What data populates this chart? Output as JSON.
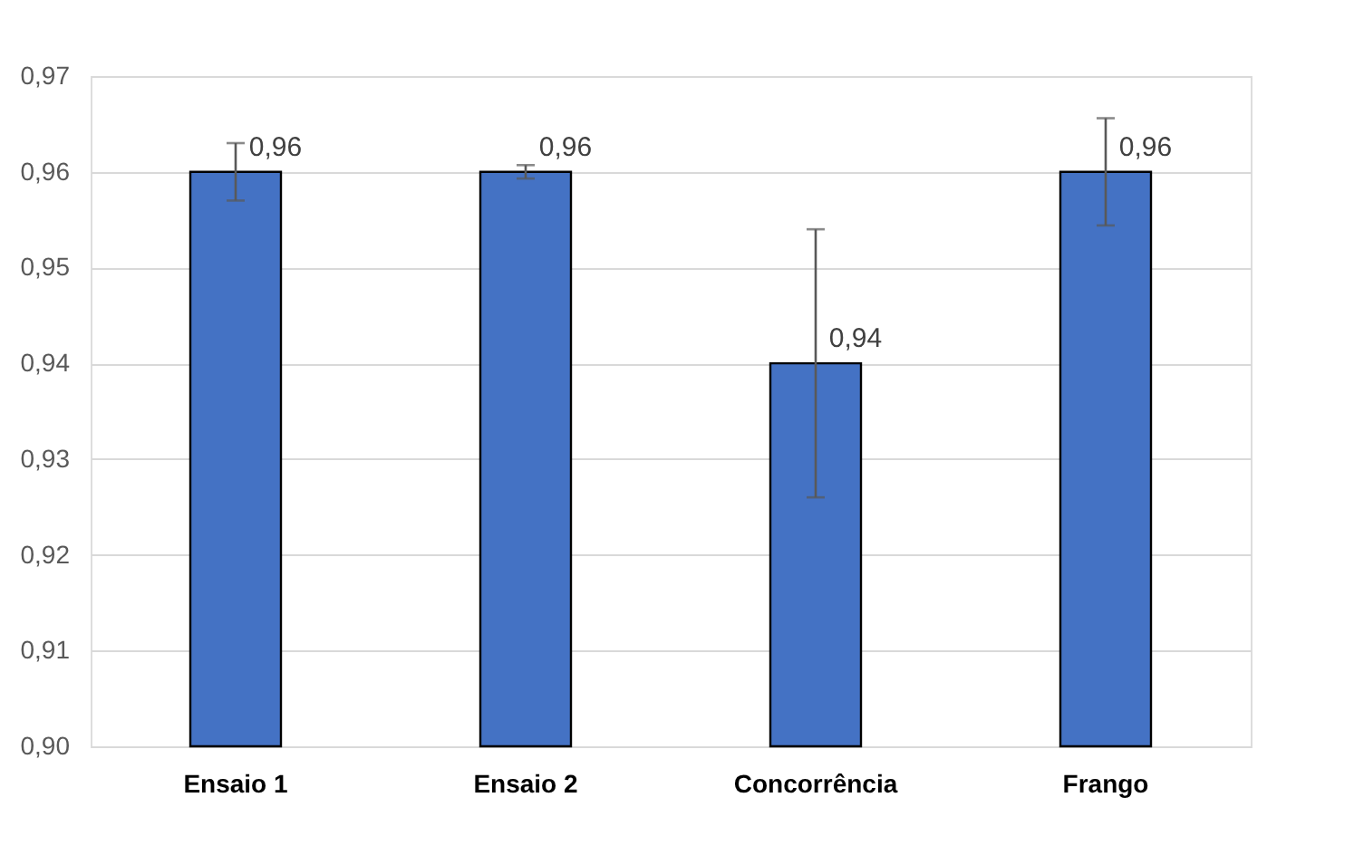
{
  "chart_data": {
    "type": "bar",
    "categories": [
      "Ensaio 1",
      "Ensaio 2",
      "Concorrência",
      "Frango"
    ],
    "values": [
      0.96,
      0.96,
      0.94,
      0.96
    ],
    "value_labels": [
      "0,96",
      "0,96",
      "0,94",
      "0,96"
    ],
    "errors": [
      0.003,
      0.0007,
      0.014,
      0.0056
    ],
    "color": "#4472c4",
    "ylim": [
      0.9,
      0.97
    ],
    "yticks": [
      {
        "value": 0.9,
        "label": "0,90"
      },
      {
        "value": 0.91,
        "label": "0,91"
      },
      {
        "value": 0.92,
        "label": "0,92"
      },
      {
        "value": 0.93,
        "label": "0,93"
      },
      {
        "value": 0.94,
        "label": "0,94"
      },
      {
        "value": 0.95,
        "label": "0,95"
      },
      {
        "value": 0.96,
        "label": "0,96"
      },
      {
        "value": 0.97,
        "label": "0,97"
      }
    ],
    "grid": "y"
  }
}
